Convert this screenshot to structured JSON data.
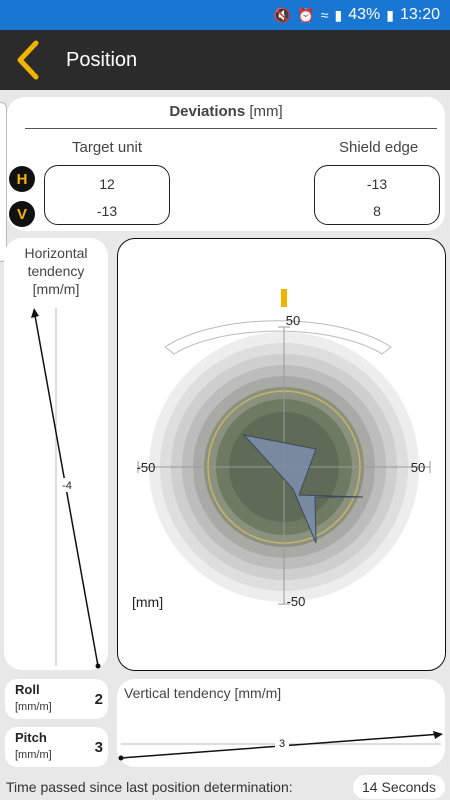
{
  "status_bar": {
    "battery": "43%",
    "time": "13:20"
  },
  "app_bar": {
    "title": "Position"
  },
  "deviations": {
    "title": "Deviations",
    "unit": "[mm]",
    "target_unit": {
      "label": "Target unit",
      "h": "12",
      "v": "-13"
    },
    "shield_edge": {
      "label": "Shield edge",
      "h": "-13",
      "v": "8"
    },
    "badge_h": "H",
    "badge_v": "V"
  },
  "horizontal_tendency": {
    "title": "Horizontal tendency [mm/m]",
    "value": "-4"
  },
  "plot": {
    "unit_label": "[mm]",
    "tick_top": "50",
    "tick_bottom": "-50",
    "tick_left": "-50",
    "tick_right": "50",
    "colors": {
      "accent": "#f2b200",
      "target_fill": "#7b8ea7",
      "ring_dark": "#5f6b56"
    }
  },
  "roll": {
    "label": "Roll",
    "unit": "[mm/m]",
    "value": "2"
  },
  "pitch": {
    "label": "Pitch",
    "unit": "[mm/m]",
    "value": "3"
  },
  "vertical_tendency": {
    "title": "Vertical tendency [mm/m]",
    "value": "3"
  },
  "footer": {
    "text": "Time passed since last position determination:",
    "elapsed": "14 Seconds"
  }
}
